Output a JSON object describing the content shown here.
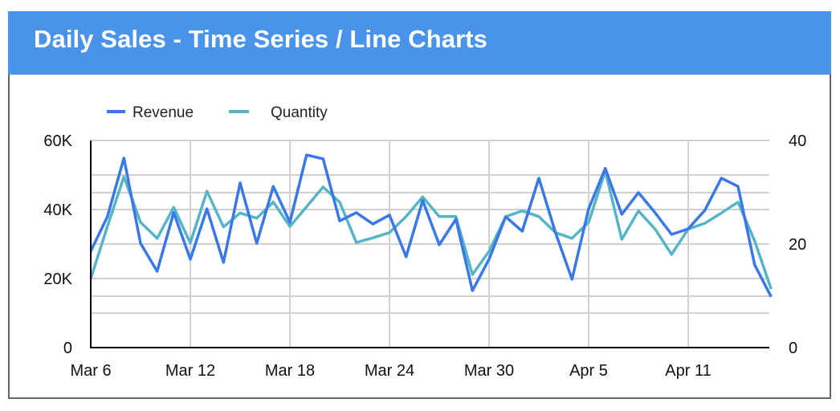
{
  "header": {
    "title": "Daily Sales - Time Series / Line Charts"
  },
  "colors": {
    "header_bg": "#4a93ea",
    "revenue": "#3a78e6",
    "quantity": "#55b5c7",
    "grid": "#d0d0d0",
    "axis": "#000000"
  },
  "legend": {
    "items": [
      {
        "label": "Revenue"
      },
      {
        "label": "Quantity"
      }
    ]
  },
  "chart_data": {
    "type": "line",
    "title": "Daily Sales - Time Series / Line Charts",
    "xlabel": "",
    "ylabel": "Revenue",
    "y2label": "Quantity",
    "ylim": [
      0,
      60000
    ],
    "y2lim": [
      0,
      40
    ],
    "grid": true,
    "legend_position": "top-left",
    "x_tick_labels": [
      "Mar 6",
      "Mar 12",
      "Mar 18",
      "Mar 24",
      "Mar 30",
      "Apr 5",
      "Apr 11"
    ],
    "y_tick_labels": [
      "0",
      "20K",
      "40K",
      "60K"
    ],
    "y2_tick_labels": [
      "0",
      "20",
      "40"
    ],
    "x": [
      "Mar 6",
      "Mar 7",
      "Mar 8",
      "Mar 9",
      "Mar 10",
      "Mar 11",
      "Mar 12",
      "Mar 13",
      "Mar 14",
      "Mar 15",
      "Mar 16",
      "Mar 17",
      "Mar 18",
      "Mar 19",
      "Mar 20",
      "Mar 21",
      "Mar 22",
      "Mar 23",
      "Mar 24",
      "Mar 25",
      "Mar 26",
      "Mar 27",
      "Mar 28",
      "Mar 29",
      "Mar 30",
      "Mar 31",
      "Apr 1",
      "Apr 2",
      "Apr 3",
      "Apr 4",
      "Apr 5",
      "Apr 6",
      "Apr 7",
      "Apr 8",
      "Apr 9",
      "Apr 10",
      "Apr 11",
      "Apr 12",
      "Apr 13",
      "Apr 14",
      "Apr 15",
      "Apr 16"
    ],
    "series": [
      {
        "name": "Revenue",
        "axis": "left",
        "values": [
          27900,
          37900,
          54900,
          30200,
          22100,
          39100,
          25600,
          40200,
          24700,
          47700,
          30200,
          46700,
          36300,
          55800,
          54700,
          36700,
          39100,
          35800,
          38400,
          26300,
          42600,
          29800,
          37200,
          16500,
          25600,
          37900,
          33700,
          49100,
          33300,
          19800,
          40200,
          51900,
          38600,
          44900,
          39100,
          32800,
          34400,
          39800,
          49100,
          46700,
          24000,
          14700
        ]
      },
      {
        "name": "Quantity",
        "axis": "right",
        "values": [
          13.3,
          23.4,
          33.0,
          24.2,
          21.1,
          27.1,
          20.2,
          30.2,
          23.3,
          26.0,
          25.0,
          28.1,
          23.4,
          27.2,
          31.0,
          28.1,
          20.3,
          21.2,
          22.2,
          25.3,
          29.1,
          25.3,
          25.3,
          14.1,
          18.6,
          25.3,
          26.4,
          25.3,
          22.2,
          21.1,
          24.2,
          34.1,
          20.9,
          26.4,
          22.9,
          18.0,
          22.9,
          24.0,
          26.0,
          28.1,
          20.6,
          11.3
        ]
      }
    ]
  }
}
